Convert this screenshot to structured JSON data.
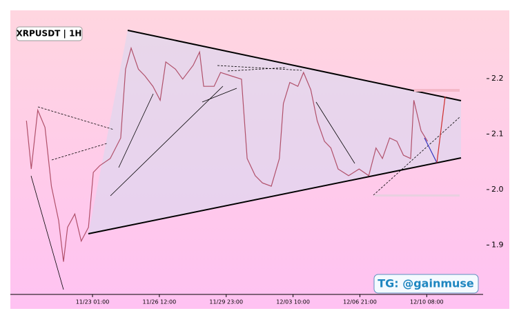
{
  "chart_data": {
    "type": "line",
    "title": "XRPUSDT | 1H",
    "watermark": "TG: @gainmuse",
    "x": [
      -82,
      -76,
      -68,
      -59,
      -51,
      -42,
      -36,
      -31,
      -22,
      -14,
      -5,
      1,
      9,
      22,
      35,
      41,
      48,
      57,
      65,
      75,
      84,
      91,
      103,
      112,
      125,
      133,
      138,
      151,
      159,
      172,
      185,
      192,
      202,
      211,
      222,
      232,
      237,
      245,
      255,
      262,
      271,
      279,
      288,
      296,
      305,
      318,
      331,
      343,
      352,
      360,
      369,
      378,
      386,
      395,
      399,
      408,
      416
    ],
    "series": [
      {
        "name": "XRPUSDT",
        "color": "#b0506a",
        "values": [
          2.124,
          2.037,
          2.143,
          2.112,
          2.006,
          1.944,
          1.87,
          1.932,
          1.956,
          1.907,
          1.932,
          2.031,
          2.043,
          2.056,
          2.093,
          2.217,
          2.255,
          2.217,
          2.205,
          2.186,
          2.161,
          2.23,
          2.217,
          2.199,
          2.224,
          2.248,
          2.186,
          2.186,
          2.211,
          2.205,
          2.199,
          2.056,
          2.025,
          2.012,
          2.006,
          2.056,
          2.155,
          2.193,
          2.186,
          2.211,
          2.18,
          2.124,
          2.087,
          2.075,
          2.037,
          2.025,
          2.037,
          2.025,
          2.075,
          2.056,
          2.093,
          2.087,
          2.062,
          2.056,
          2.161,
          2.106,
          2.087
        ]
      }
    ],
    "xlim": [
      -102,
      485
    ],
    "xticks": [
      {
        "value": 0,
        "label": "11/23 01:00"
      },
      {
        "value": 83,
        "label": "11/26 12:00"
      },
      {
        "value": 166,
        "label": "11/29 23:00"
      },
      {
        "value": 249,
        "label": "12/03 10:00"
      },
      {
        "value": 332,
        "label": "12/06 21:00"
      },
      {
        "value": 415,
        "label": "12/10 08:00"
      }
    ],
    "ylim": [
      1.811,
      2.323
    ],
    "yticks": [
      2.2,
      2.1,
      {
        "value": 2,
        "label": "2.0"
      },
      1.9
    ]
  }
}
